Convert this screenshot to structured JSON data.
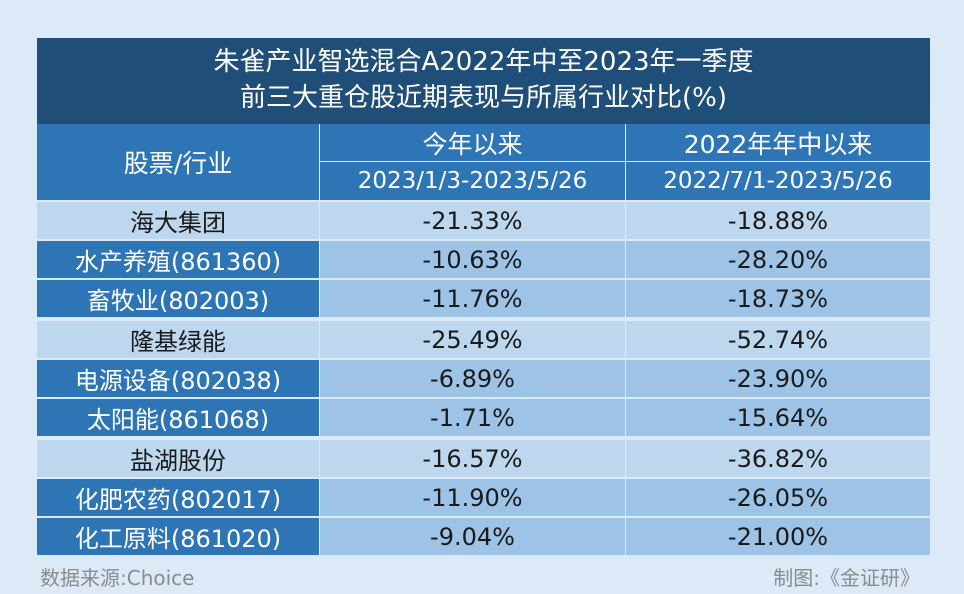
{
  "title": {
    "line1": "朱雀产业智选混合A2022年中至2023年一季度",
    "line2": "前三大重仓股近期表现与所属行业对比(%)"
  },
  "header": {
    "stock_industry": "股票/行业",
    "col_a": "今年以来",
    "col_a_range": "2023/1/3-2023/5/26",
    "col_b": "2022年年中以来",
    "col_b_range": "2022/7/1-2023/5/26"
  },
  "rows": [
    {
      "name": "海大集团",
      "a": "-21.33%",
      "b": "-18.88%"
    },
    {
      "name": "水产养殖(861360)",
      "a": "-10.63%",
      "b": "-28.20%"
    },
    {
      "name": "畜牧业(802003)",
      "a": "-11.76%",
      "b": "-18.73%"
    },
    {
      "name": "隆基绿能",
      "a": "-25.49%",
      "b": "-52.74%"
    },
    {
      "name": "电源设备(802038)",
      "a": "-6.89%",
      "b": "-23.90%"
    },
    {
      "name": "太阳能(861068)",
      "a": "-1.71%",
      "b": "-15.64%"
    },
    {
      "name": "盐湖股份",
      "a": "-16.57%",
      "b": "-36.82%"
    },
    {
      "name": "化肥农药(802017)",
      "a": "-11.90%",
      "b": "-26.05%"
    },
    {
      "name": "化工原料(861020)",
      "a": "-9.04%",
      "b": "-21.00%"
    }
  ],
  "footer": {
    "source": "数据来源:Choice",
    "credit": "制图:《金证研》"
  },
  "colors": {
    "title_bg": "#1f4e78",
    "header_bg": "#2e75b6",
    "stock_row_bg": "#bdd7ee",
    "industry_row_bg": "#9dc3e6",
    "page_bg": "#dce9f6"
  }
}
